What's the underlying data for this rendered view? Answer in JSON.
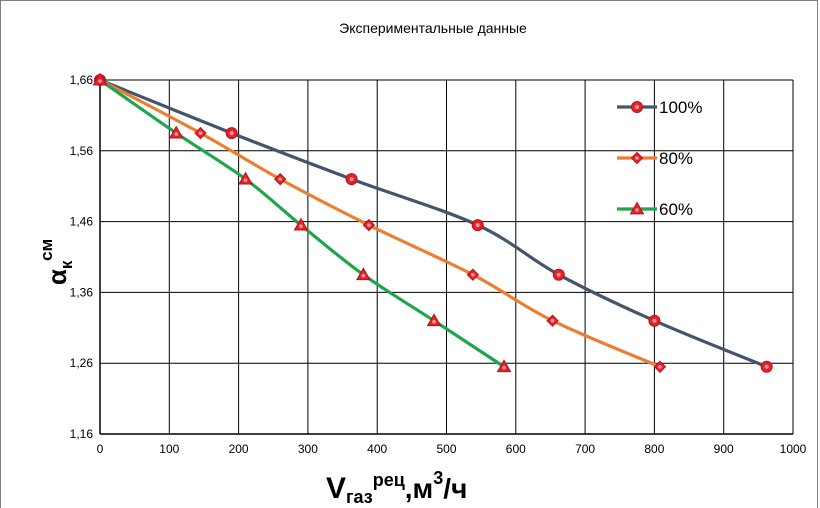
{
  "chart_data": {
    "type": "line",
    "title": "Экспериментальные данные",
    "xlabel": {
      "main": "V",
      "sub": "газ",
      "sup": "рец",
      "unit_main": ",м",
      "unit_sup": "3",
      "unit_tail": "/ч"
    },
    "ylabel": {
      "main": "α",
      "sub": "к",
      "sup": "см"
    },
    "xlim": [
      0,
      1000
    ],
    "ylim": [
      1.16,
      1.66
    ],
    "x_ticks": [
      0,
      100,
      200,
      300,
      400,
      500,
      600,
      700,
      800,
      900,
      1000
    ],
    "y_ticks": [
      1.16,
      1.26,
      1.36,
      1.46,
      1.56,
      1.66
    ],
    "y_tick_labels": [
      "1,16",
      "1,26",
      "1,36",
      "1,46",
      "1,56",
      "1,66"
    ],
    "grid": true,
    "legend_position": "right",
    "marker_color": "#e8202a",
    "series": [
      {
        "name": "100%",
        "color": "#44546a",
        "marker": "circle",
        "x": [
          0,
          190,
          363,
          545,
          662,
          800,
          962
        ],
        "y": [
          1.66,
          1.585,
          1.52,
          1.455,
          1.385,
          1.32,
          1.255
        ]
      },
      {
        "name": "80%",
        "color": "#ed7d31",
        "marker": "diamond",
        "x": [
          0,
          145,
          260,
          388,
          538,
          653,
          808
        ],
        "y": [
          1.66,
          1.585,
          1.52,
          1.455,
          1.385,
          1.32,
          1.255
        ]
      },
      {
        "name": "60%",
        "color": "#1ea64a",
        "marker": "triangle",
        "x": [
          0,
          110,
          210,
          290,
          380,
          482,
          583
        ],
        "y": [
          1.66,
          1.585,
          1.52,
          1.455,
          1.385,
          1.32,
          1.255
        ]
      }
    ]
  }
}
